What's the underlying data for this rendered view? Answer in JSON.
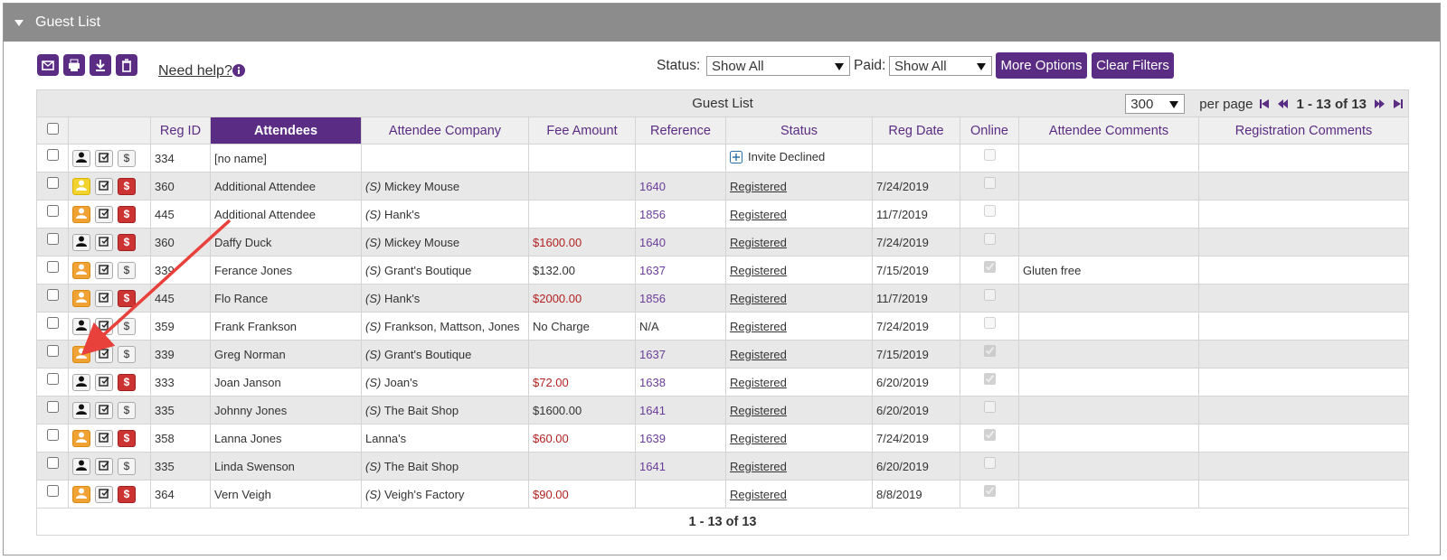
{
  "header": {
    "title": "Guest List"
  },
  "toolbar": {
    "help": "Need help?",
    "status_label": "Status:",
    "status_value": "Show All",
    "paid_label": "Paid:",
    "paid_value": "Show All",
    "buttons": [
      "More Options",
      "Clear Filters"
    ]
  },
  "table": {
    "caption": "Guest List",
    "per_page_value": "300",
    "per_page_label": "per page",
    "range": "1 - 13 of 13",
    "footer": "1 - 13 of 13",
    "fee_icon": "$",
    "sort_column_index": 3,
    "columns": [
      "Reg ID",
      "Attendees",
      "Attendee Company",
      "Fee Amount",
      "Reference",
      "Status",
      "Reg Date",
      "Online",
      "Attendee Comments",
      "Registration Comments"
    ],
    "rows": [
      {
        "reg_id": "334",
        "attendee": "[no name]",
        "status": "Invite Declined",
        "online": false,
        "person": "gray",
        "fee_flag": "gray"
      },
      {
        "reg_id": "360",
        "attendee": "Additional Attendee",
        "company_prefix": "(S)",
        "company": "Mickey Mouse",
        "reference": "1640",
        "status": "Registered",
        "reg_date": "7/24/2019",
        "online": false,
        "person": "yellow",
        "fee_flag": "red"
      },
      {
        "reg_id": "445",
        "attendee": "Additional Attendee",
        "company_prefix": "(S)",
        "company": "Hank's",
        "reference": "1856",
        "status": "Registered",
        "reg_date": "11/7/2019",
        "online": false,
        "person": "orange",
        "fee_flag": "red"
      },
      {
        "reg_id": "360",
        "attendee": "Daffy Duck",
        "company_prefix": "(S)",
        "company": "Mickey Mouse",
        "fee": "$1600.00",
        "fee_due": true,
        "reference": "1640",
        "status": "Registered",
        "reg_date": "7/24/2019",
        "online": false,
        "person": "gray",
        "fee_flag": "red"
      },
      {
        "reg_id": "339",
        "attendee": "Ferance Jones",
        "company_prefix": "(S)",
        "company": "Grant's Boutique",
        "fee": "$132.00",
        "reference": "1637",
        "status": "Registered",
        "reg_date": "7/15/2019",
        "online": true,
        "comments": "Gluten free",
        "person": "orange",
        "fee_flag": "gray"
      },
      {
        "reg_id": "445",
        "attendee": "Flo Rance",
        "company_prefix": "(S)",
        "company": "Hank's",
        "fee": "$2000.00",
        "fee_due": true,
        "reference": "1856",
        "status": "Registered",
        "reg_date": "11/7/2019",
        "online": false,
        "person": "orange",
        "fee_flag": "red"
      },
      {
        "reg_id": "359",
        "attendee": "Frank Frankson",
        "company_prefix": "(S)",
        "company": "Frankson, Mattson, Jones",
        "fee": "No Charge",
        "reference": "N/A",
        "status": "Registered",
        "reg_date": "7/24/2019",
        "online": false,
        "person": "gray",
        "fee_flag": "gray"
      },
      {
        "reg_id": "339",
        "attendee": "Greg Norman",
        "company_prefix": "(S)",
        "company": "Grant's Boutique",
        "reference": "1637",
        "status": "Registered",
        "reg_date": "7/15/2019",
        "online": true,
        "person": "orange",
        "fee_flag": "gray"
      },
      {
        "reg_id": "333",
        "attendee": "Joan Janson",
        "company_prefix": "(S)",
        "company": "Joan's",
        "fee": "$72.00",
        "fee_due": true,
        "reference": "1638",
        "status": "Registered",
        "reg_date": "6/20/2019",
        "online": true,
        "person": "gray",
        "fee_flag": "red"
      },
      {
        "reg_id": "335",
        "attendee": "Johnny Jones",
        "company_prefix": "(S)",
        "company": "The Bait Shop",
        "fee": "$1600.00",
        "reference": "1641",
        "status": "Registered",
        "reg_date": "6/20/2019",
        "online": false,
        "person": "gray",
        "fee_flag": "gray"
      },
      {
        "reg_id": "358",
        "attendee": "Lanna Jones",
        "company": "Lanna's",
        "fee": "$60.00",
        "fee_due": true,
        "reference": "1639",
        "status": "Registered",
        "reg_date": "7/24/2019",
        "online": true,
        "person": "orange",
        "fee_flag": "red"
      },
      {
        "reg_id": "335",
        "attendee": "Linda Swenson",
        "company_prefix": "(S)",
        "company": "The Bait Shop",
        "reference": "1641",
        "status": "Registered",
        "reg_date": "6/20/2019",
        "online": false,
        "person": "gray",
        "fee_flag": "gray"
      },
      {
        "reg_id": "364",
        "attendee": "Vern Veigh",
        "company_prefix": "(S)",
        "company": "Veigh's Factory",
        "fee": "$90.00",
        "fee_due": true,
        "status": "Registered",
        "reg_date": "8/8/2019",
        "online": true,
        "person": "orange",
        "fee_flag": "red"
      }
    ]
  }
}
